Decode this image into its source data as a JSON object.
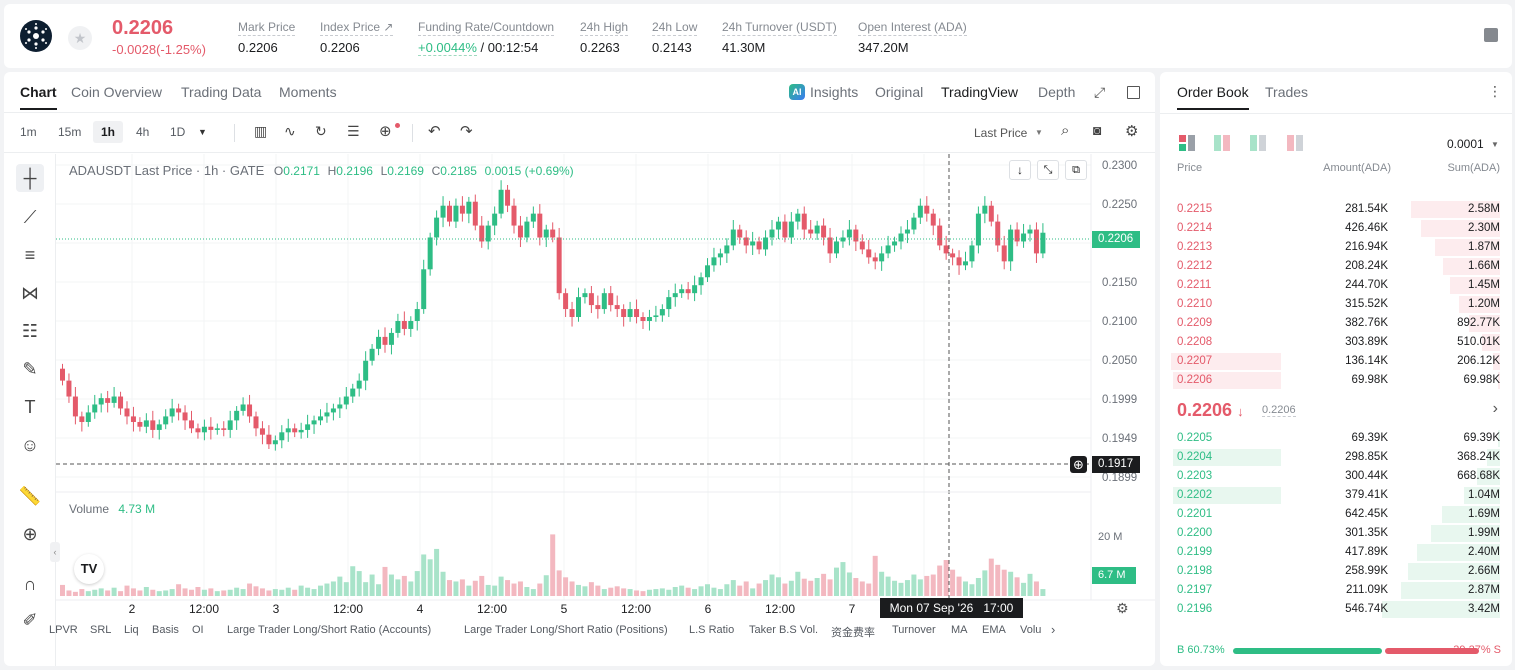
{
  "ticker": {
    "last_price": "0.2206",
    "change": "-0.0028(-1.25%)",
    "stats": [
      {
        "label": "Mark Price",
        "value": "0.2206"
      },
      {
        "label": "Index Price ↗",
        "value": "0.2206"
      },
      {
        "label": "Funding Rate/Countdown",
        "value": "+0.0044%",
        "value2": " / 00:12:54"
      },
      {
        "label": "24h High",
        "value": "0.2263"
      },
      {
        "label": "24h Low",
        "value": "0.2143"
      },
      {
        "label": "24h Turnover (USDT)",
        "value": "41.30M"
      },
      {
        "label": "Open Interest (ADA)",
        "value": "347.20M"
      }
    ]
  },
  "chart_tabs": [
    "Chart",
    "Coin Overview",
    "Trading Data",
    "Moments"
  ],
  "view_tabs": {
    "insights": "Insights",
    "original": "Original",
    "tradingview": "TradingView",
    "depth": "Depth"
  },
  "intervals": [
    "1m",
    "15m",
    "1h",
    "4h",
    "1D"
  ],
  "last_price_select": "Last Price",
  "legend": {
    "symbol": "ADAUSDT Last Price · 1h · GATE",
    "o_l": "O",
    "o": "0.2171",
    "h_l": "H",
    "h": "0.2196",
    "l_l": "L",
    "l": "0.2169",
    "c_l": "C",
    "c": "0.2185",
    "chg": "0.0015 (+0.69%)"
  },
  "volume": {
    "label": "Volume",
    "value": "4.73 M",
    "axis_label": "20 M",
    "tag": "6.7 M"
  },
  "price_axis": [
    "0.2300",
    "0.2250",
    "0.2200",
    "0.2150",
    "0.2100",
    "0.2050",
    "0.1999",
    "0.1949",
    "0.1899"
  ],
  "price_tag_last": "0.2206",
  "price_tag_cursor": "0.1917",
  "time_axis": [
    "2",
    "12:00",
    "3",
    "12:00",
    "4",
    "12:00",
    "5",
    "12:00",
    "6",
    "12:00",
    "7",
    "12:00"
  ],
  "crosshair_time": "Mon 07 Sep '26   17:00",
  "indicators": [
    "LPVR",
    "SRL",
    "Liq",
    "Basis",
    "OI",
    "Large Trader Long/Short Ratio (Accounts)",
    "Large Trader Long/Short Ratio (Positions)",
    "L.S Ratio",
    "Taker B.S Vol.",
    "资金费率",
    "Turnover",
    "MA",
    "EMA",
    "Volu"
  ],
  "chart_data": {
    "type": "candlestick",
    "close_start": 0.2035,
    "closes": [
      0.202,
      0.2,
      0.1975,
      0.1968,
      0.198,
      0.199,
      0.1998,
      0.1992,
      0.2,
      0.1985,
      0.1975,
      0.1968,
      0.1962,
      0.197,
      0.1958,
      0.1965,
      0.1975,
      0.1985,
      0.198,
      0.197,
      0.196,
      0.1955,
      0.1962,
      0.1958,
      0.196,
      0.1958,
      0.197,
      0.1982,
      0.199,
      0.1975,
      0.196,
      0.1952,
      0.194,
      0.1945,
      0.1955,
      0.196,
      0.1955,
      0.1958,
      0.1965,
      0.197,
      0.1975,
      0.198,
      0.1985,
      0.199,
      0.2,
      0.201,
      0.202,
      0.2045,
      0.206,
      0.2075,
      0.2065,
      0.208,
      0.2095,
      0.2085,
      0.2095,
      0.211,
      0.216,
      0.22,
      0.2225,
      0.224,
      0.222,
      0.224,
      0.223,
      0.2245,
      0.2215,
      0.2195,
      0.2215,
      0.223,
      0.226,
      0.224,
      0.2215,
      0.22,
      0.222,
      0.223,
      0.22,
      0.221,
      0.22,
      0.213,
      0.211,
      0.21,
      0.2125,
      0.213,
      0.2115,
      0.211,
      0.213,
      0.2115,
      0.211,
      0.21,
      0.211,
      0.21,
      0.2095,
      0.21,
      0.2102,
      0.211,
      0.2125,
      0.213,
      0.2135,
      0.213,
      0.214,
      0.215,
      0.2165,
      0.2175,
      0.218,
      0.219,
      0.221,
      0.22,
      0.219,
      0.2195,
      0.2185,
      0.22,
      0.221,
      0.222,
      0.22,
      0.222,
      0.223,
      0.221,
      0.2205,
      0.2215,
      0.22,
      0.218,
      0.2195,
      0.22,
      0.221,
      0.2195,
      0.2185,
      0.2175,
      0.217,
      0.218,
      0.219,
      0.2195,
      0.2205,
      0.221,
      0.2225,
      0.224,
      0.223,
      0.2215,
      0.219,
      0.218,
      0.2175,
      0.2165,
      0.217,
      0.219,
      0.223,
      0.224,
      0.222,
      0.219,
      0.217,
      0.221,
      0.2195,
      0.2205,
      0.221,
      0.218,
      0.2206
    ],
    "volumes_m": [
      3.2,
      1.6,
      1.2,
      2.0,
      1.4,
      1.8,
      2.2,
      1.6,
      2.4,
      1.4,
      3.0,
      2.2,
      1.6,
      2.6,
      1.8,
      1.4,
      1.6,
      2.0,
      3.4,
      2.2,
      1.8,
      2.6,
      1.8,
      2.2,
      1.4,
      1.6,
      1.8,
      2.4,
      2.0,
      3.6,
      2.8,
      2.2,
      1.6,
      2.0,
      1.8,
      2.4,
      1.8,
      3.0,
      2.4,
      2.0,
      3.0,
      3.6,
      4.2,
      5.6,
      4.0,
      8.6,
      7.2,
      4.0,
      6.2,
      3.4,
      8.4,
      6.2,
      4.8,
      5.8,
      4.2,
      7.2,
      12.0,
      10.6,
      13.6,
      7.0,
      4.6,
      4.2,
      4.8,
      3.0,
      4.4,
      5.8,
      3.2,
      3.0,
      5.6,
      4.6,
      3.6,
      4.2,
      2.6,
      2.0,
      3.6,
      6.0,
      17.8,
      7.4,
      5.4,
      4.2,
      3.2,
      2.8,
      4.0,
      3.0,
      2.0,
      2.4,
      2.8,
      2.2,
      2.0,
      1.6,
      1.4,
      1.8,
      2.0,
      2.2,
      1.8,
      2.6,
      3.0,
      2.4,
      2.0,
      2.8,
      3.4,
      2.4,
      2.0,
      3.4,
      4.6,
      3.0,
      4.2,
      2.2,
      3.6,
      4.6,
      6.2,
      5.4,
      3.6,
      4.4,
      7.0,
      5.0,
      4.4,
      5.2,
      6.4,
      4.8,
      8.2,
      9.8,
      6.8,
      5.2,
      4.2,
      3.6,
      11.6,
      7.0,
      5.6,
      4.4,
      3.8,
      4.6,
      6.2,
      4.8,
      5.8,
      6.2,
      8.8,
      10.4,
      7.6,
      5.6,
      4.2,
      3.4,
      5.2,
      7.4,
      10.8,
      9.0,
      7.6,
      7.0,
      5.4,
      3.8,
      6.4,
      4.2
    ],
    "ylim": [
      0.189,
      0.2305
    ],
    "volume_ylim": [
      0,
      26
    ]
  },
  "order_book": {
    "tabs": [
      "Order Book",
      "Trades"
    ],
    "precision": "0.0001",
    "headers": {
      "price": "Price",
      "amount": "Amount(ADA)",
      "sum": "Sum(ADA)"
    },
    "asks": [
      {
        "price": "0.2215",
        "amount": "281.54K",
        "sum": "2.58M",
        "depth": 0.754,
        "amt_frac": 0
      },
      {
        "price": "0.2214",
        "amount": "426.46K",
        "sum": "2.30M",
        "depth": 0.672,
        "amt_frac": 0
      },
      {
        "price": "0.2213",
        "amount": "216.94K",
        "sum": "1.87M",
        "depth": 0.547,
        "amt_frac": 0
      },
      {
        "price": "0.2212",
        "amount": "208.24K",
        "sum": "1.66M",
        "depth": 0.485,
        "amt_frac": 0
      },
      {
        "price": "0.2211",
        "amount": "244.70K",
        "sum": "1.45M",
        "depth": 0.424,
        "amt_frac": 0
      },
      {
        "price": "0.2210",
        "amount": "315.52K",
        "sum": "1.20M",
        "depth": 0.351,
        "amt_frac": 0
      },
      {
        "price": "0.2209",
        "amount": "382.76K",
        "sum": "892.77K",
        "depth": 0.261,
        "amt_frac": 0
      },
      {
        "price": "0.2208",
        "amount": "303.89K",
        "sum": "510.01K",
        "depth": 0.149,
        "amt_frac": 0
      },
      {
        "price": "0.2207",
        "amount": "136.14K",
        "sum": "206.12K",
        "depth": 0.06,
        "amt_frac": 0.38
      },
      {
        "price": "0.2206",
        "amount": "69.98K",
        "sum": "69.98K",
        "depth": 0.02,
        "amt_frac": 0.36
      }
    ],
    "mid_price": "0.2206",
    "mid_sub": "0.2206",
    "bids": [
      {
        "price": "0.2205",
        "amount": "69.39K",
        "sum": "69.39K",
        "depth": 0.02,
        "amt_frac": 0
      },
      {
        "price": "0.2204",
        "amount": "298.85K",
        "sum": "368.24K",
        "depth": 0.108,
        "amt_frac": 0.36
      },
      {
        "price": "0.2203",
        "amount": "300.44K",
        "sum": "668.68K",
        "depth": 0.196,
        "amt_frac": 0
      },
      {
        "price": "0.2202",
        "amount": "379.41K",
        "sum": "1.04M",
        "depth": 0.304,
        "amt_frac": 0.36
      },
      {
        "price": "0.2201",
        "amount": "642.45K",
        "sum": "1.69M",
        "depth": 0.494,
        "amt_frac": 0
      },
      {
        "price": "0.2200",
        "amount": "301.35K",
        "sum": "1.99M",
        "depth": 0.582,
        "amt_frac": 0
      },
      {
        "price": "0.2199",
        "amount": "417.89K",
        "sum": "2.40M",
        "depth": 0.702,
        "amt_frac": 0
      },
      {
        "price": "0.2198",
        "amount": "258.99K",
        "sum": "2.66M",
        "depth": 0.778,
        "amt_frac": 0
      },
      {
        "price": "0.2197",
        "amount": "211.09K",
        "sum": "2.87M",
        "depth": 0.839,
        "amt_frac": 0
      },
      {
        "price": "0.2196",
        "amount": "546.74K",
        "sum": "3.42M",
        "depth": 1.0,
        "amt_frac": 0
      }
    ],
    "buy_ratio": "B 60.73%",
    "sell_ratio": "39.27% S",
    "buy_frac": 0.6073
  },
  "colors": {
    "up": "#2ebd85",
    "down": "#e45a6a"
  }
}
